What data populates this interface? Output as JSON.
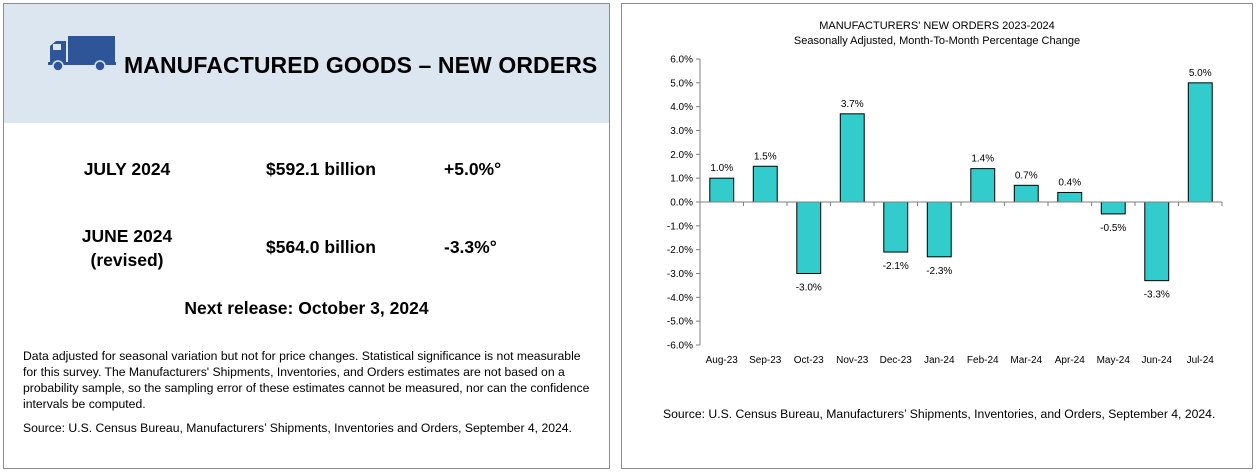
{
  "left": {
    "title": "MANUFACTURED GOODS – NEW ORDERS",
    "rows": [
      {
        "label": "JULY 2024",
        "sublabel": "",
        "value": "$592.1 billion",
        "change": "+5.0%°"
      },
      {
        "label": "JUNE 2024",
        "sublabel": "(revised)",
        "value": "$564.0 billion",
        "change": "-3.3%°"
      }
    ],
    "next_release": "Next release: October 3, 2024",
    "note": "Data adjusted for seasonal variation but not for price changes. Statistical significance is not measurable for this survey.  The Manufacturers' Shipments, Inventories, and Orders estimates are not based on a probability sample, so the sampling error of these estimates cannot be measured, nor can the confidence intervals be computed.",
    "source": "Source: U.S. Census Bureau, Manufacturers’ Shipments, Inventories and Orders, September 4, 2024.",
    "icon": "truck-icon"
  },
  "right": {
    "source": "Source: U.S. Census Bureau, Manufacturers’ Shipments, Inventories, and Orders, September 4, 2024."
  },
  "colors": {
    "header_band": "#dce6f1",
    "truck": "#2e5597",
    "bar_fill": "#33cccc",
    "bar_stroke": "#000000"
  },
  "chart_data": {
    "type": "bar",
    "title": "MANUFACTURERS' NEW ORDERS 2023-2024",
    "subtitle": "Seasonally Adjusted,  Month-To-Month Percentage Change",
    "categories": [
      "Aug-23",
      "Sep-23",
      "Oct-23",
      "Nov-23",
      "Dec-23",
      "Jan-24",
      "Feb-24",
      "Mar-24",
      "Apr-24",
      "May-24",
      "Jun-24",
      "Jul-24"
    ],
    "values": [
      1.0,
      1.5,
      -3.0,
      3.7,
      -2.1,
      -2.3,
      1.4,
      0.7,
      0.4,
      -0.5,
      -3.3,
      5.0
    ],
    "data_labels": [
      "1.0%",
      "1.5%",
      "-3.0%",
      "3.7%",
      "-2.1%",
      "-2.3%",
      "1.4%",
      "0.7%",
      "0.4%",
      "-0.5%",
      "-3.3%",
      "5.0%"
    ],
    "ylim": [
      -6.0,
      6.0
    ],
    "ytick_labels": [
      "6.0%",
      "5.0%",
      "4.0%",
      "3.0%",
      "2.0%",
      "1.0%",
      "0.0%",
      "-1.0%",
      "-2.0%",
      "-3.0%",
      "-4.0%",
      "-5.0%",
      "-6.0%"
    ],
    "xlabel": "",
    "ylabel": "",
    "grid": false,
    "legend": "none"
  }
}
